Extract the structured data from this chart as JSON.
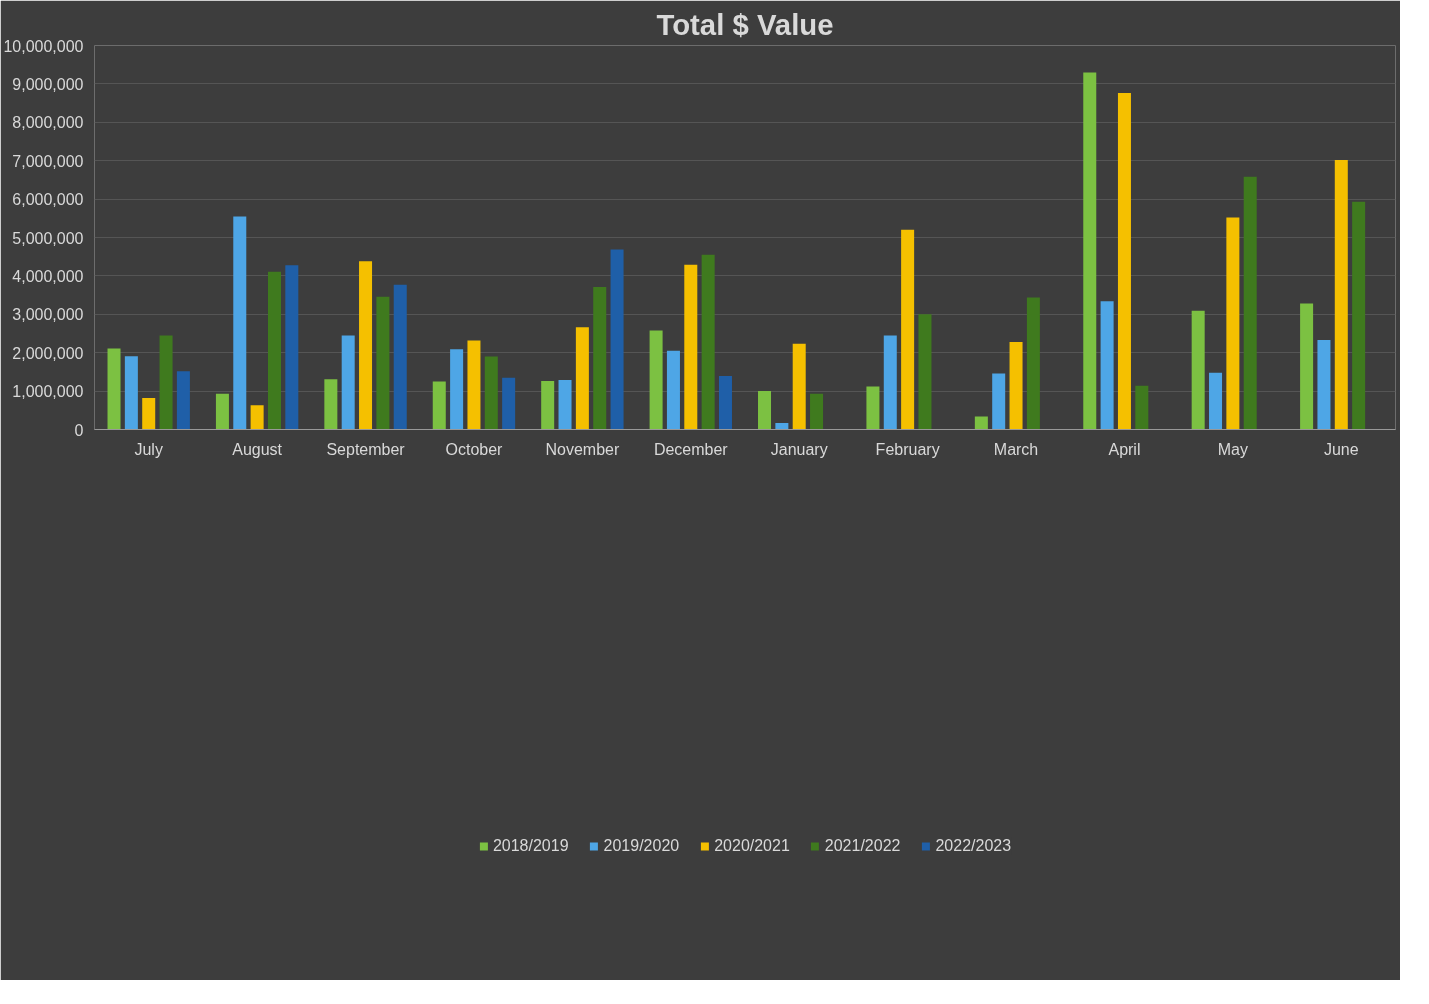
{
  "chart_data": {
    "type": "bar",
    "title": "Total $ Value",
    "categories": [
      "July",
      "August",
      "September",
      "October",
      "November",
      "December",
      "January",
      "February",
      "March",
      "April",
      "May",
      "June"
    ],
    "series": [
      {
        "name": "2018/2019",
        "color": "#7cc142",
        "values": [
          2110000,
          930000,
          1310000,
          1250000,
          1260000,
          2580000,
          1000000,
          1120000,
          340000,
          9300000,
          3090000,
          3280000
        ]
      },
      {
        "name": "2019/2020",
        "color": "#4ea6e6",
        "values": [
          1910000,
          5550000,
          2450000,
          2090000,
          1290000,
          2050000,
          170000,
          2450000,
          1460000,
          3340000,
          1480000,
          2330000
        ]
      },
      {
        "name": "2020/2021",
        "color": "#f5c000",
        "values": [
          820000,
          630000,
          4380000,
          2320000,
          2660000,
          4290000,
          2230000,
          5200000,
          2280000,
          8760000,
          5520000,
          7020000
        ]
      },
      {
        "name": "2021/2022",
        "color": "#3f7a1e",
        "values": [
          2450000,
          4110000,
          3460000,
          1900000,
          3710000,
          4550000,
          930000,
          3000000,
          3440000,
          1140000,
          6580000,
          5930000
        ]
      },
      {
        "name": "2022/2023",
        "color": "#1f5fa8",
        "values": [
          1520000,
          4280000,
          3770000,
          1350000,
          4690000,
          1390000,
          null,
          null,
          null,
          null,
          null,
          null
        ]
      }
    ],
    "ylim": [
      0,
      10000000
    ],
    "yticks": [
      {
        "value": 0,
        "label": "0"
      },
      {
        "value": 1000000,
        "label": "1,000,000"
      },
      {
        "value": 2000000,
        "label": "2,000,000"
      },
      {
        "value": 3000000,
        "label": "3,000,000"
      },
      {
        "value": 4000000,
        "label": "4,000,000"
      },
      {
        "value": 5000000,
        "label": "5,000,000"
      },
      {
        "value": 6000000,
        "label": "6,000,000"
      },
      {
        "value": 7000000,
        "label": "7,000,000"
      },
      {
        "value": 8000000,
        "label": "8,000,000"
      },
      {
        "value": 9000000,
        "label": "9,000,000"
      },
      {
        "value": 10000000,
        "label": "10,000,000"
      }
    ],
    "grid": "y",
    "legend": "bottom"
  }
}
